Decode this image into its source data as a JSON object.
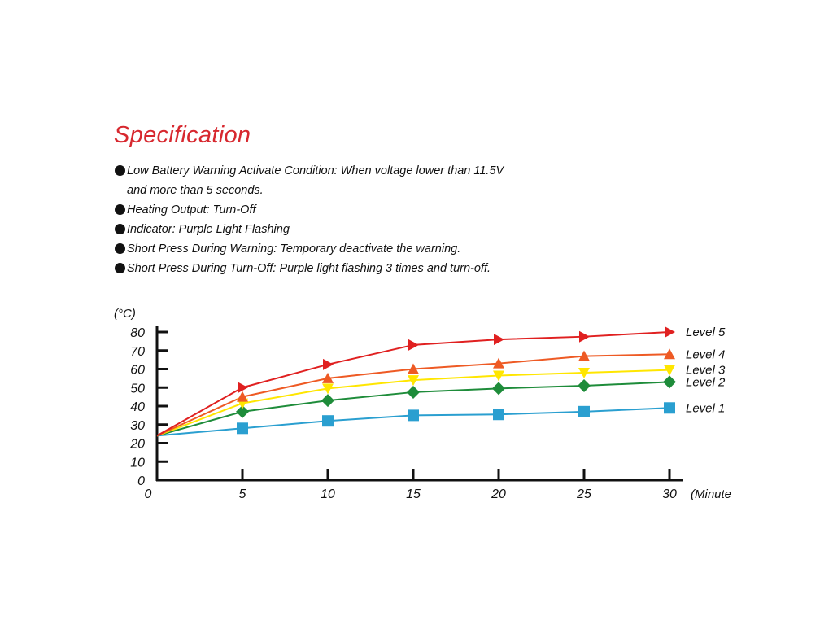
{
  "spec": {
    "title": "Specification",
    "items": [
      {
        "text": "Low Battery Warning Activate Condition: When voltage lower than 11.5V",
        "cont": "and more than 5 seconds."
      },
      {
        "text": "Heating Output: Turn-Off",
        "cont": ""
      },
      {
        "text": "Indicator: Purple Light Flashing",
        "cont": ""
      },
      {
        "text": "Short Press During Warning: Temporary deactivate the warning.",
        "cont": ""
      },
      {
        "text": "Short Press During Turn-Off: Purple light flashing 3 times and turn-off.",
        "cont": ""
      }
    ]
  },
  "chart_data": {
    "type": "line",
    "title": "",
    "xlabel": "(Minute",
    "ylabel": "(°C)",
    "x": [
      0,
      5,
      10,
      15,
      20,
      25,
      30
    ],
    "x_ticks": [
      "0",
      "5",
      "10",
      "15",
      "20",
      "25",
      "30"
    ],
    "y_ticks": [
      "0",
      "10",
      "20",
      "30",
      "40",
      "50",
      "60",
      "70",
      "80"
    ],
    "xlim": [
      0,
      30
    ],
    "ylim": [
      0,
      80
    ],
    "grid": false,
    "legend": "right, at line ends",
    "series": [
      {
        "name": "Level 1",
        "color": "#2a9fd0",
        "marker": "square",
        "values": [
          24,
          28,
          32,
          35,
          35.5,
          37,
          39
        ]
      },
      {
        "name": "Level 2",
        "color": "#1e8c3a",
        "marker": "diamond",
        "values": [
          24,
          37,
          43,
          47.5,
          49.5,
          51,
          53
        ]
      },
      {
        "name": "Level 3",
        "color": "#ffe600",
        "marker": "triangle-down",
        "values": [
          24,
          41.5,
          49.5,
          54,
          56.5,
          58,
          59.5
        ]
      },
      {
        "name": "Level 4",
        "color": "#ee5a24",
        "marker": "triangle-up",
        "values": [
          24,
          45,
          55,
          60,
          63,
          67,
          68
        ]
      },
      {
        "name": "Level 5",
        "color": "#e02020",
        "marker": "triangle-right",
        "values": [
          24,
          50,
          62.5,
          73,
          76,
          77.5,
          80
        ]
      }
    ]
  }
}
